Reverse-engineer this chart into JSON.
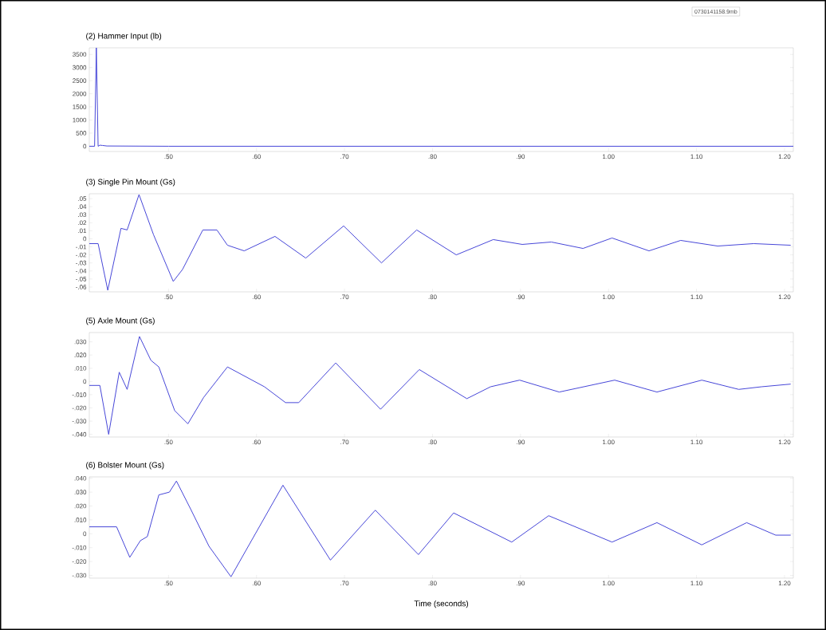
{
  "chart_data": [
    {
      "type": "line",
      "title": "(2) Hammer Input (lb)",
      "annotations": [
        "0730141158.9mb"
      ],
      "xlim": [
        0.41,
        1.21
      ],
      "xticks": [
        {
          "value": 0.5,
          "label": ".50"
        },
        {
          "value": 0.6,
          "label": ".60"
        },
        {
          "value": 0.7,
          "label": ".70"
        },
        {
          "value": 0.8,
          "label": ".80"
        },
        {
          "value": 0.9,
          "label": ".90"
        },
        {
          "value": 1.0,
          "label": "1.00"
        },
        {
          "value": 1.1,
          "label": "1.10"
        },
        {
          "value": 1.2,
          "label": "1.20"
        }
      ],
      "ylim": [
        -200,
        3750
      ],
      "yticks": [
        0,
        500,
        1000,
        1500,
        2000,
        2500,
        3000,
        3500
      ],
      "x": [
        0.41,
        0.416,
        0.418,
        0.42,
        0.422,
        0.425,
        0.43,
        0.5,
        1.21
      ],
      "series": [
        {
          "color": "#4646d8",
          "values": [
            0,
            0,
            3750,
            0,
            40,
            30,
            10,
            0,
            0
          ]
        }
      ]
    },
    {
      "type": "line",
      "title": "(3) Single Pin Mount (Gs)",
      "xlim": [
        0.41,
        1.21
      ],
      "xticks": [
        {
          "value": 0.5,
          "label": ".50"
        },
        {
          "value": 0.6,
          "label": ".60"
        },
        {
          "value": 0.7,
          "label": ".70"
        },
        {
          "value": 0.8,
          "label": ".80"
        },
        {
          "value": 0.9,
          "label": ".90"
        },
        {
          "value": 1.0,
          "label": "1.00"
        },
        {
          "value": 1.1,
          "label": "1.10"
        },
        {
          "value": 1.2,
          "label": "1.20"
        }
      ],
      "ylim": [
        -0.066,
        0.056
      ],
      "yticks": [
        {
          "value": 0.05,
          "label": ".05"
        },
        {
          "value": 0.04,
          "label": ".04"
        },
        {
          "value": 0.03,
          "label": ".03"
        },
        {
          "value": 0.02,
          "label": ".02"
        },
        {
          "value": 0.01,
          "label": ".01"
        },
        0,
        {
          "value": -0.01,
          "label": "-.01"
        },
        {
          "value": -0.02,
          "label": "-.02"
        },
        {
          "value": -0.03,
          "label": "-.03"
        },
        {
          "value": -0.04,
          "label": "-.04"
        },
        {
          "value": -0.05,
          "label": "-.05"
        },
        {
          "value": -0.06,
          "label": "-.06"
        }
      ],
      "x": [
        0.41,
        0.42,
        0.431,
        0.446,
        0.453,
        0.4665,
        0.483,
        0.5054,
        0.516,
        0.539,
        0.555,
        0.567,
        0.586,
        0.621,
        0.656,
        0.699,
        0.742,
        0.782,
        0.827,
        0.869,
        0.902,
        0.935,
        0.971,
        1.004,
        1.046,
        1.082,
        1.124,
        1.165,
        1.207
      ],
      "series": [
        {
          "color": "#4646d8",
          "values": [
            -0.006,
            -0.006,
            -0.064,
            0.013,
            0.011,
            0.055,
            0.005,
            -0.053,
            -0.038,
            0.011,
            0.011,
            -0.008,
            -0.015,
            0.003,
            -0.024,
            0.016,
            -0.03,
            0.011,
            -0.02,
            -0.001,
            -0.007,
            -0.004,
            -0.012,
            0.001,
            -0.015,
            -0.002,
            -0.009,
            -0.006,
            -0.008
          ]
        }
      ]
    },
    {
      "type": "line",
      "title": "(5) Axle Mount (Gs)",
      "xlim": [
        0.41,
        1.21
      ],
      "xticks": [
        {
          "value": 0.5,
          "label": ".50"
        },
        {
          "value": 0.6,
          "label": ".60"
        },
        {
          "value": 0.7,
          "label": ".70"
        },
        {
          "value": 0.8,
          "label": ".80"
        },
        {
          "value": 0.9,
          "label": ".90"
        },
        {
          "value": 1.0,
          "label": "1.00"
        },
        {
          "value": 1.1,
          "label": "1.10"
        },
        {
          "value": 1.2,
          "label": "1.20"
        }
      ],
      "ylim": [
        -0.042,
        0.037
      ],
      "yticks": [
        {
          "value": 0.03,
          "label": ".030"
        },
        {
          "value": 0.02,
          "label": ".020"
        },
        {
          "value": 0.01,
          "label": ".010"
        },
        0,
        {
          "value": -0.01,
          "label": "-.010"
        },
        {
          "value": -0.02,
          "label": "-.020"
        },
        {
          "value": -0.03,
          "label": "-.030"
        },
        {
          "value": -0.04,
          "label": "-.040"
        }
      ],
      "x": [
        0.41,
        0.422,
        0.432,
        0.444,
        0.453,
        0.467,
        0.48,
        0.489,
        0.507,
        0.522,
        0.54,
        0.567,
        0.609,
        0.633,
        0.648,
        0.69,
        0.741,
        0.785,
        0.839,
        0.866,
        0.899,
        0.944,
        1.007,
        1.055,
        1.106,
        1.148,
        1.174,
        1.207
      ],
      "series": [
        {
          "color": "#4646d8",
          "values": [
            -0.003,
            -0.003,
            -0.04,
            0.007,
            -0.006,
            0.034,
            0.016,
            0.011,
            -0.022,
            -0.032,
            -0.012,
            0.011,
            -0.004,
            -0.016,
            -0.016,
            0.014,
            -0.021,
            0.009,
            -0.013,
            -0.004,
            0.001,
            -0.008,
            0.001,
            -0.008,
            0.001,
            -0.006,
            -0.004,
            -0.002
          ]
        }
      ]
    },
    {
      "type": "line",
      "title": "(6) Bolster Mount (Gs)",
      "xlabel": "Time (seconds)",
      "xlim": [
        0.41,
        1.21
      ],
      "xticks": [
        {
          "value": 0.5,
          "label": ".50"
        },
        {
          "value": 0.6,
          "label": ".60"
        },
        {
          "value": 0.7,
          "label": ".70"
        },
        {
          "value": 0.8,
          "label": ".80"
        },
        {
          "value": 0.9,
          "label": ".90"
        },
        {
          "value": 1.0,
          "label": "1.00"
        },
        {
          "value": 1.1,
          "label": "1.10"
        },
        {
          "value": 1.2,
          "label": "1.20"
        }
      ],
      "ylim": [
        -0.032,
        0.041
      ],
      "yticks": [
        {
          "value": 0.04,
          "label": ".040"
        },
        {
          "value": 0.03,
          "label": ".030"
        },
        {
          "value": 0.02,
          "label": ".020"
        },
        {
          "value": 0.01,
          "label": ".010"
        },
        0,
        {
          "value": -0.01,
          "label": "-.010"
        },
        {
          "value": -0.02,
          "label": "-.020"
        },
        {
          "value": -0.03,
          "label": "-.030"
        }
      ],
      "x": [
        0.41,
        0.441,
        0.456,
        0.468,
        0.476,
        0.489,
        0.501,
        0.509,
        0.525,
        0.546,
        0.571,
        0.63,
        0.684,
        0.735,
        0.784,
        0.824,
        0.89,
        0.932,
        1.004,
        1.055,
        1.106,
        1.157,
        1.19,
        1.207
      ],
      "series": [
        {
          "color": "#4646d8",
          "values": [
            0.005,
            0.005,
            -0.017,
            -0.005,
            -0.002,
            0.028,
            0.03,
            0.038,
            0.018,
            -0.009,
            -0.031,
            0.035,
            -0.019,
            0.017,
            -0.015,
            0.015,
            -0.006,
            0.013,
            -0.006,
            0.008,
            -0.008,
            0.008,
            -0.001,
            -0.001
          ]
        }
      ]
    }
  ]
}
